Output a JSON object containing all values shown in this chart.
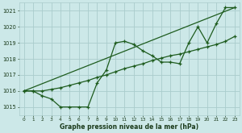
{
  "title": "Graphe pression niveau de la mer (hPa)",
  "bg_color": "#cce8e8",
  "grid_color": "#aacccc",
  "line_color": "#1e5c1e",
  "text_color": "#1a3a1a",
  "xlim": [
    -0.5,
    23.5
  ],
  "ylim": [
    1014.5,
    1021.5
  ],
  "yticks": [
    1015,
    1016,
    1017,
    1018,
    1019,
    1020,
    1021
  ],
  "xticks": [
    0,
    1,
    2,
    3,
    4,
    5,
    6,
    7,
    8,
    9,
    10,
    11,
    12,
    13,
    14,
    15,
    16,
    17,
    18,
    19,
    20,
    21,
    22,
    23
  ],
  "series1_x": [
    0,
    1,
    2,
    3,
    4,
    5,
    6,
    7,
    8,
    9,
    10,
    11,
    12,
    13,
    14,
    15,
    16,
    17,
    18,
    19,
    20,
    21,
    22,
    23
  ],
  "series1_y": [
    1016.0,
    1016.0,
    1015.7,
    1015.5,
    1015.0,
    1015.0,
    1015.0,
    1015.0,
    1016.5,
    1017.3,
    1019.0,
    1019.1,
    1018.9,
    1018.5,
    1018.2,
    1017.8,
    1017.8,
    1017.7,
    1019.0,
    1020.0,
    1019.0,
    1020.2,
    1021.2,
    1021.2
  ],
  "series2_x": [
    0,
    23
  ],
  "series2_y": [
    1016.0,
    1021.2
  ],
  "series3_x": [
    0,
    1,
    2,
    3,
    4,
    5,
    6,
    7,
    8,
    9,
    10,
    11,
    12,
    13,
    14,
    15,
    16,
    17,
    18,
    19,
    20,
    21,
    22,
    23
  ],
  "series3_y": [
    1016.0,
    1016.0,
    1016.0,
    1016.1,
    1016.2,
    1016.35,
    1016.5,
    1016.65,
    1016.85,
    1017.0,
    1017.2,
    1017.4,
    1017.55,
    1017.7,
    1017.9,
    1018.05,
    1018.2,
    1018.3,
    1018.45,
    1018.6,
    1018.75,
    1018.9,
    1019.1,
    1019.4
  ]
}
